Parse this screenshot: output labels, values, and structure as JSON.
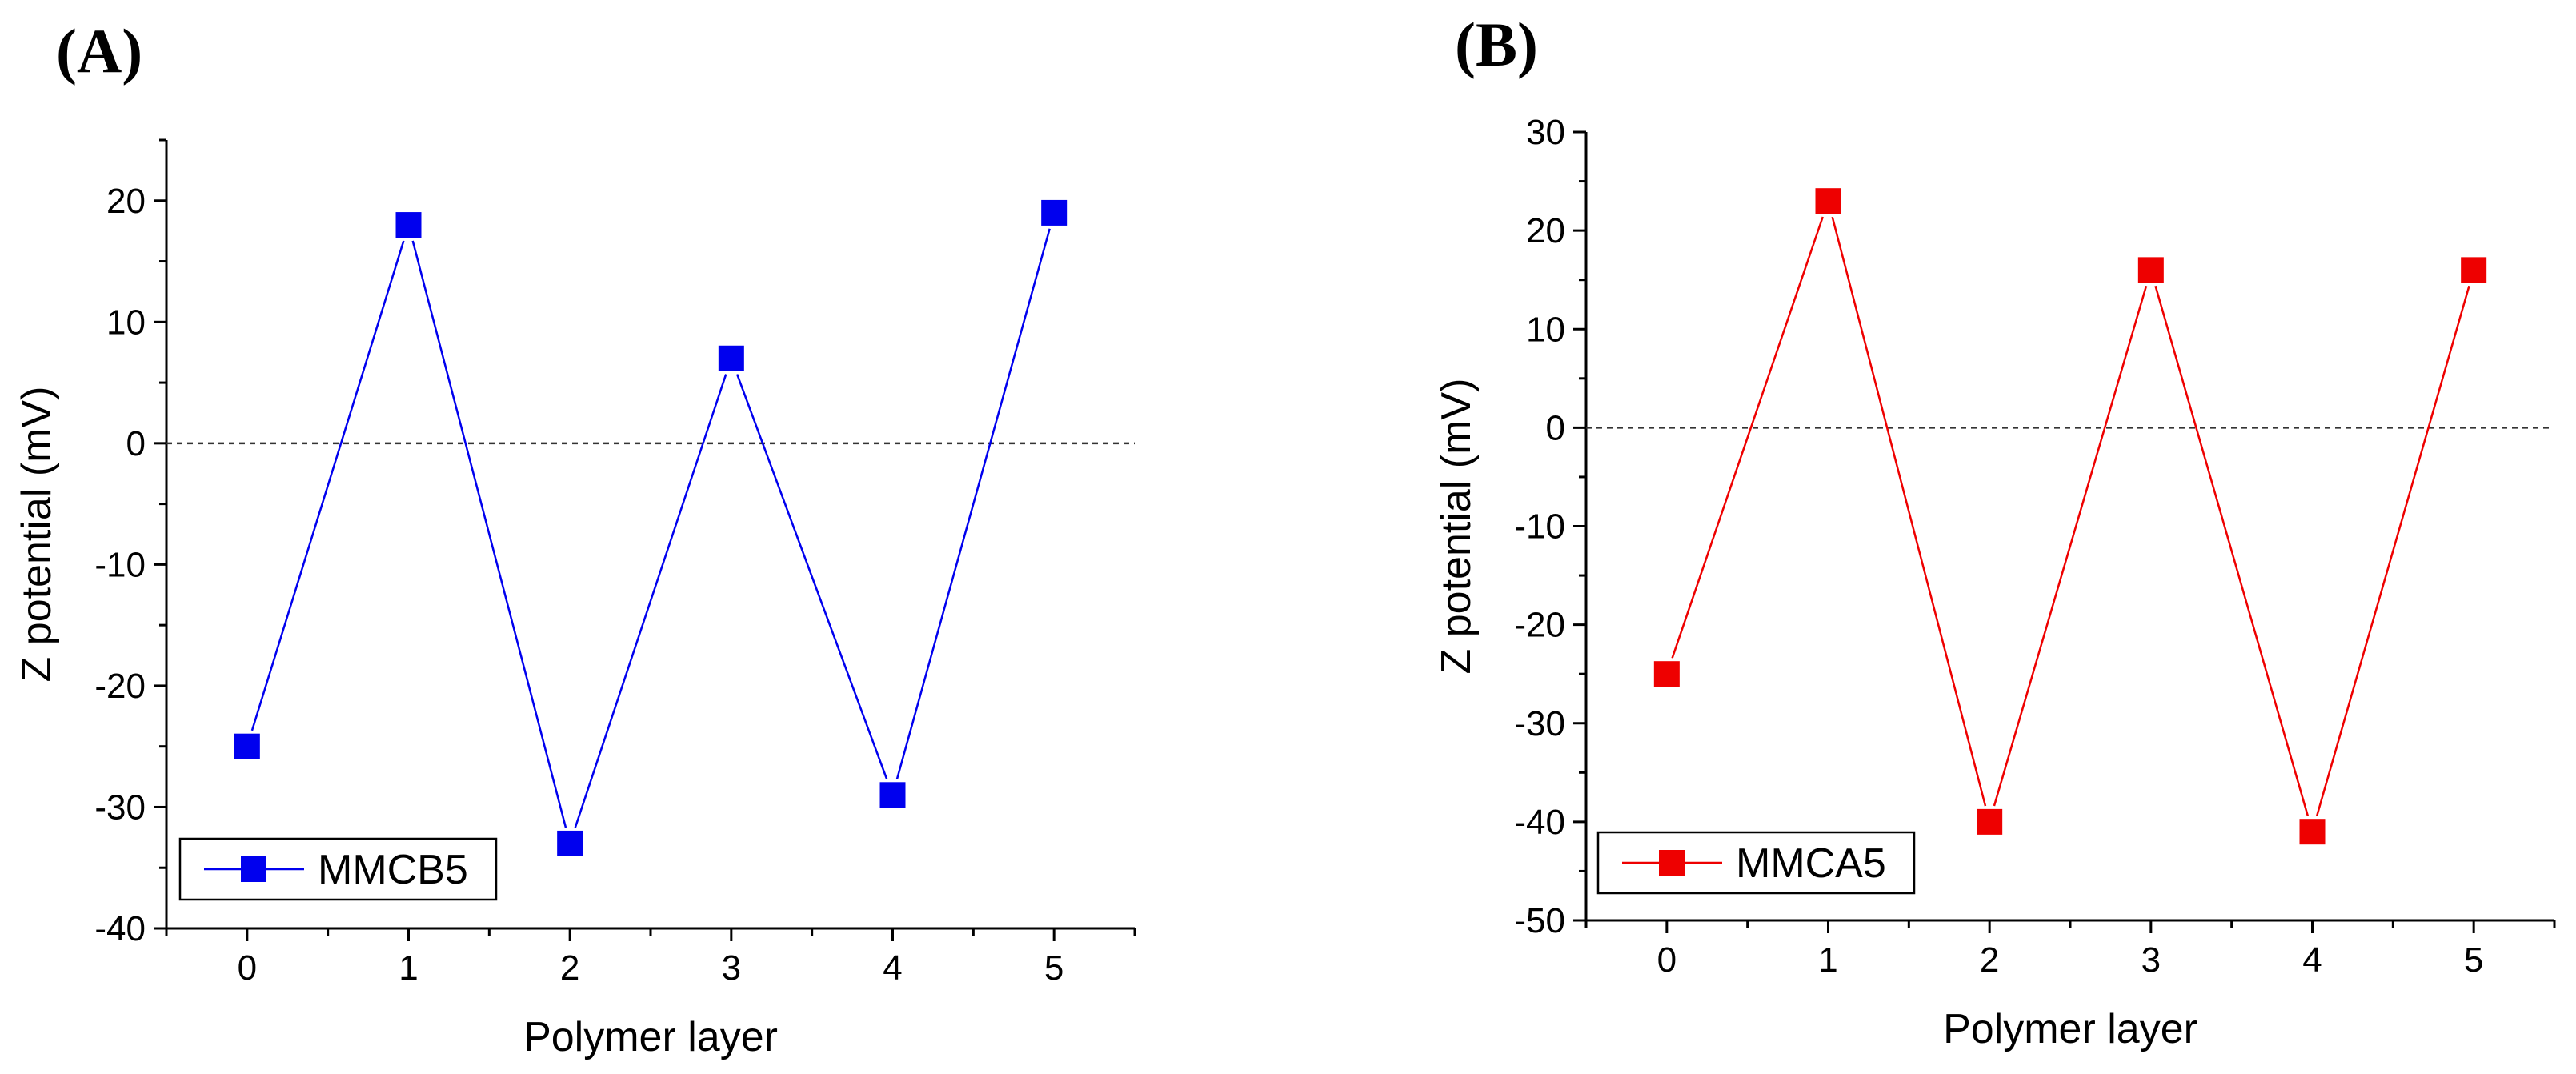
{
  "chart_data": [
    {
      "type": "line",
      "panel_label": "(A)",
      "title": "",
      "xlabel": "Polymer layer",
      "ylabel": "Z potential (mV)",
      "x": [
        0,
        1,
        2,
        3,
        4,
        5
      ],
      "xlim": [
        -0.5,
        5.5
      ],
      "ylim": [
        -40,
        25
      ],
      "xticks": [
        "0",
        "1",
        "2",
        "3",
        "4",
        "5"
      ],
      "yticks": [
        "-40",
        "-30",
        "-20",
        "-10",
        "0",
        "10",
        "20"
      ],
      "reference_line": {
        "y": 0,
        "style": "dashed"
      },
      "legend_position": "bottom-left",
      "series": [
        {
          "name": "MMCB5",
          "values": [
            -25,
            18,
            -33,
            7,
            -29,
            19
          ],
          "color": "#0000ee",
          "marker": "square"
        }
      ]
    },
    {
      "type": "line",
      "panel_label": "(B)",
      "title": "",
      "xlabel": "Polymer layer",
      "ylabel": "Z potential (mV)",
      "x": [
        0,
        1,
        2,
        3,
        4,
        5
      ],
      "xlim": [
        -0.5,
        5.5
      ],
      "ylim": [
        -50,
        30
      ],
      "xticks": [
        "0",
        "1",
        "2",
        "3",
        "4",
        "5"
      ],
      "yticks": [
        "-50",
        "-40",
        "-30",
        "-20",
        "-10",
        "0",
        "10",
        "20",
        "30"
      ],
      "reference_line": {
        "y": 0,
        "style": "dashed"
      },
      "legend_position": "bottom-left",
      "series": [
        {
          "name": "MMCA5",
          "values": [
            -25,
            23,
            -40,
            16,
            -41,
            16
          ],
          "color": "#ee0000",
          "marker": "square"
        }
      ]
    }
  ]
}
